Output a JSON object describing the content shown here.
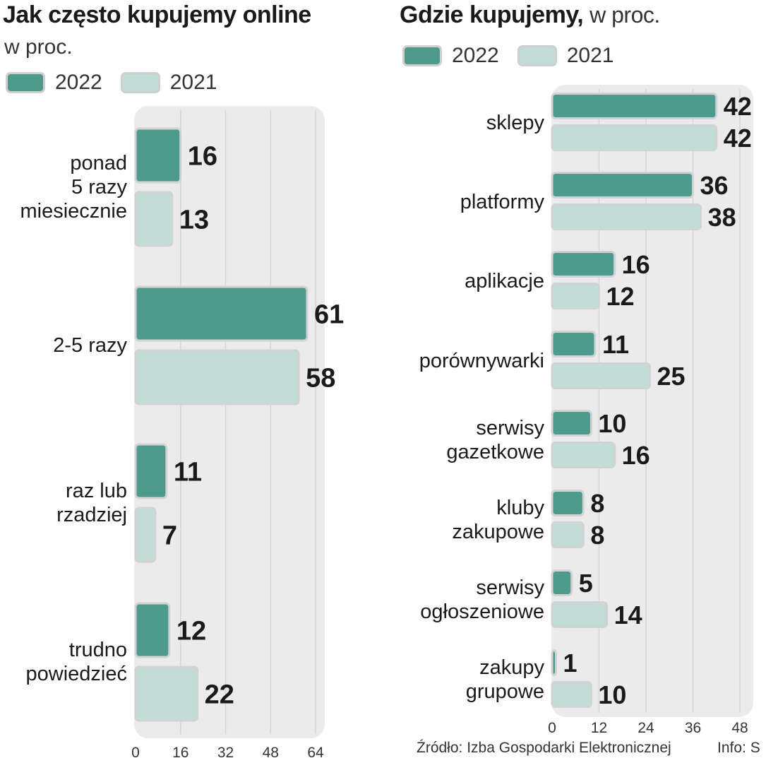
{
  "colors": {
    "y2022": "#4e9b8e",
    "y2021": "#c2ddd5",
    "panel": "#ebebeb"
  },
  "chart_data": [
    {
      "type": "bar",
      "title": "Jak często kupujemy online",
      "subtitle": "w proc.",
      "orientation": "horizontal",
      "legend": [
        "2022",
        "2021"
      ],
      "categories": [
        [
          "ponad",
          "5 razy",
          "miesiecznie"
        ],
        [
          "2-5 razy"
        ],
        [
          "raz lub",
          "rzadziej"
        ],
        [
          "trudno",
          "powiedzieć"
        ]
      ],
      "series": [
        {
          "name": "2022",
          "values": [
            16,
            61,
            11,
            12
          ]
        },
        {
          "name": "2021",
          "values": [
            13,
            58,
            7,
            22
          ]
        }
      ],
      "xlim": [
        0,
        64
      ],
      "xticks": [
        0,
        16,
        32,
        48,
        64
      ],
      "grid": true
    },
    {
      "type": "bar",
      "title": "Gdzie kupujemy,",
      "subtitle": "w proc.",
      "orientation": "horizontal",
      "legend": [
        "2022",
        "2021"
      ],
      "categories": [
        [
          "sklepy"
        ],
        [
          "platformy"
        ],
        [
          "aplikacje"
        ],
        [
          "porównywarki"
        ],
        [
          "serwisy",
          "gazetkowe"
        ],
        [
          "kluby",
          "zakupowe"
        ],
        [
          "serwisy",
          "ogłoszeniowe"
        ],
        [
          "zakupy",
          "grupowe"
        ]
      ],
      "series": [
        {
          "name": "2022",
          "values": [
            42,
            36,
            16,
            11,
            10,
            8,
            5,
            1
          ]
        },
        {
          "name": "2021",
          "values": [
            42,
            38,
            12,
            25,
            16,
            8,
            14,
            10
          ]
        }
      ],
      "xlim": [
        0,
        48
      ],
      "xticks": [
        0,
        12,
        24,
        36,
        48
      ],
      "grid": true
    }
  ],
  "source": "Źródło: Izba Gospodarki Elektronicznej",
  "info": "Info: S"
}
